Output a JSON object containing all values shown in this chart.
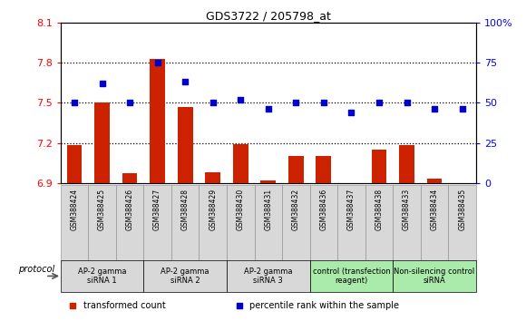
{
  "title": "GDS3722 / 205798_at",
  "samples": [
    "GSM388424",
    "GSM388425",
    "GSM388426",
    "GSM388427",
    "GSM388428",
    "GSM388429",
    "GSM388430",
    "GSM388431",
    "GSM388432",
    "GSM388436",
    "GSM388437",
    "GSM388438",
    "GSM388433",
    "GSM388434",
    "GSM388435"
  ],
  "transformed_count": [
    7.18,
    7.5,
    6.97,
    7.83,
    7.47,
    6.98,
    7.19,
    6.92,
    7.1,
    7.1,
    6.9,
    7.15,
    7.18,
    6.93,
    6.9
  ],
  "percentile_rank": [
    50,
    62,
    50,
    75,
    63,
    50,
    52,
    46,
    50,
    50,
    44,
    50,
    50,
    46,
    46
  ],
  "ylim_left": [
    6.9,
    8.1
  ],
  "ylim_right": [
    0,
    100
  ],
  "yticks_left": [
    6.9,
    7.2,
    7.5,
    7.8,
    8.1
  ],
  "yticks_right": [
    0,
    25,
    50,
    75,
    100
  ],
  "ytick_labels_left": [
    "6.9",
    "7.2",
    "7.5",
    "7.8",
    "8.1"
  ],
  "ytick_labels_right": [
    "0",
    "25",
    "50",
    "75",
    "100%"
  ],
  "dotted_lines": [
    7.2,
    7.5,
    7.8
  ],
  "groups": [
    {
      "label": "AP-2 gamma\nsiRNA 1",
      "indices": [
        0,
        1,
        2
      ],
      "color": "#d8d8d8"
    },
    {
      "label": "AP-2 gamma\nsiRNA 2",
      "indices": [
        3,
        4,
        5
      ],
      "color": "#d8d8d8"
    },
    {
      "label": "AP-2 gamma\nsiRNA 3",
      "indices": [
        6,
        7,
        8
      ],
      "color": "#d8d8d8"
    },
    {
      "label": "control (transfection\nreagent)",
      "indices": [
        9,
        10,
        11
      ],
      "color": "#aaeaaa"
    },
    {
      "label": "Non-silencing control\nsiRNA",
      "indices": [
        12,
        13,
        14
      ],
      "color": "#aaeaaa"
    }
  ],
  "bar_color": "#cc2200",
  "dot_color": "#0000cc",
  "bar_bottom": 6.9,
  "legend_items": [
    {
      "color": "#cc2200",
      "label": "transformed count"
    },
    {
      "color": "#0000cc",
      "label": "percentile rank within the sample"
    }
  ],
  "protocol_label": "protocol",
  "sample_bg_color": "#d8d8d8",
  "bg_color": "#ffffff"
}
